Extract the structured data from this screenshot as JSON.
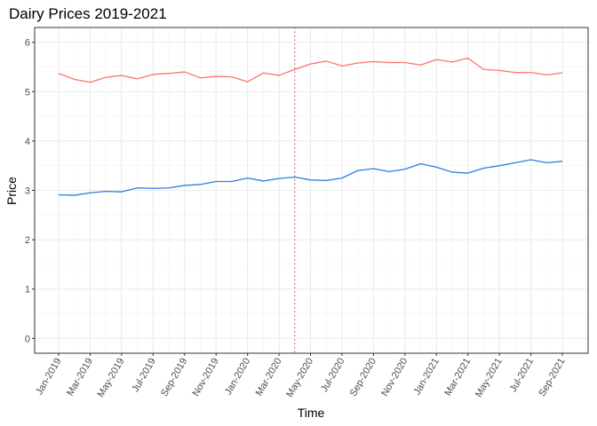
{
  "chart_data": {
    "type": "line",
    "title": "Dairy Prices 2019-2021",
    "xlabel": "Time",
    "ylabel": "Price",
    "ylim": [
      -0.3,
      6.3
    ],
    "yticks": [
      0,
      1,
      2,
      3,
      4,
      5,
      6
    ],
    "x": [
      "Jan-2019",
      "Feb-2019",
      "Mar-2019",
      "Apr-2019",
      "May-2019",
      "Jun-2019",
      "Jul-2019",
      "Aug-2019",
      "Sep-2019",
      "Oct-2019",
      "Nov-2019",
      "Dec-2019",
      "Jan-2020",
      "Feb-2020",
      "Mar-2020",
      "Apr-2020",
      "May-2020",
      "Jun-2020",
      "Jul-2020",
      "Aug-2020",
      "Sep-2020",
      "Oct-2020",
      "Nov-2020",
      "Dec-2020",
      "Jan-2021",
      "Feb-2021",
      "Mar-2021",
      "Apr-2021",
      "May-2021",
      "Jun-2021",
      "Jul-2021",
      "Aug-2021",
      "Sep-2021"
    ],
    "xtick_labels": [
      "Jan-2019",
      "Mar-2019",
      "May-2019",
      "Jul-2019",
      "Sep-2019",
      "Nov-2019",
      "Jan-2020",
      "Mar-2020",
      "May-2020",
      "Jul-2020",
      "Sep-2020",
      "Nov-2020",
      "Jan-2021",
      "Mar-2021",
      "May-2021",
      "Jul-2021",
      "Sep-2021"
    ],
    "vline": {
      "x": "Apr-2020",
      "color": "#F8766D",
      "style": "dotted"
    },
    "grid": true,
    "legend": "none",
    "series": [
      {
        "color": "#F8766D",
        "values": [
          5.37,
          5.25,
          5.19,
          5.29,
          5.33,
          5.26,
          5.35,
          5.37,
          5.4,
          5.28,
          5.31,
          5.3,
          5.2,
          5.38,
          5.33,
          5.45,
          5.56,
          5.62,
          5.52,
          5.58,
          5.61,
          5.59,
          5.59,
          5.54,
          5.65,
          5.6,
          5.68,
          5.45,
          5.43,
          5.39,
          5.39,
          5.34,
          5.38
        ]
      },
      {
        "color": "#2C7FE0",
        "values": [
          2.91,
          2.9,
          2.95,
          2.98,
          2.97,
          3.05,
          3.04,
          3.05,
          3.1,
          3.12,
          3.18,
          3.18,
          3.25,
          3.19,
          3.24,
          3.27,
          3.21,
          3.2,
          3.25,
          3.4,
          3.44,
          3.38,
          3.43,
          3.54,
          3.47,
          3.37,
          3.35,
          3.45,
          3.5,
          3.56,
          3.62,
          3.56,
          3.59
        ]
      }
    ]
  }
}
